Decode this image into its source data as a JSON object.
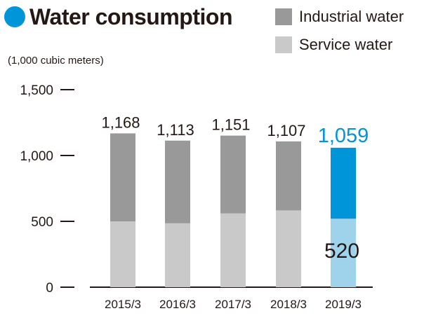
{
  "title": "Water consumption",
  "unit_label": "(1,000 cubic meters)",
  "colors": {
    "title_dot": "#0094d8",
    "industrial": "#999999",
    "service": "#c9c9c9",
    "industrial_highlight": "#0094d8",
    "service_highlight": "#9fd3ec",
    "axis": "#231815"
  },
  "legend": [
    {
      "label": "Industrial water",
      "color": "#999999"
    },
    {
      "label": "Service water",
      "color": "#c9c9c9"
    }
  ],
  "chart_data": {
    "type": "bar",
    "stacked": true,
    "categories": [
      "2015/3",
      "2016/3",
      "2017/3",
      "2018/3",
      "2019/3"
    ],
    "series": [
      {
        "name": "Service water",
        "values": [
          500,
          485,
          560,
          583,
          520
        ]
      },
      {
        "name": "Industrial water",
        "values": [
          668,
          628,
          591,
          524,
          539
        ]
      }
    ],
    "totals": [
      1168,
      1113,
      1151,
      1107,
      1059
    ],
    "total_labels": [
      "1,168",
      "1,113",
      "1,151",
      "1,107",
      "1,059"
    ],
    "highlight_index": 4,
    "highlight_service_label": "520",
    "y_ticks": [
      0,
      500,
      1000,
      1500
    ],
    "y_tick_labels": [
      "0",
      "500",
      "1,000",
      "1,500"
    ],
    "ylim": [
      0,
      1500
    ],
    "grid": false,
    "legend_position": "top-right"
  }
}
